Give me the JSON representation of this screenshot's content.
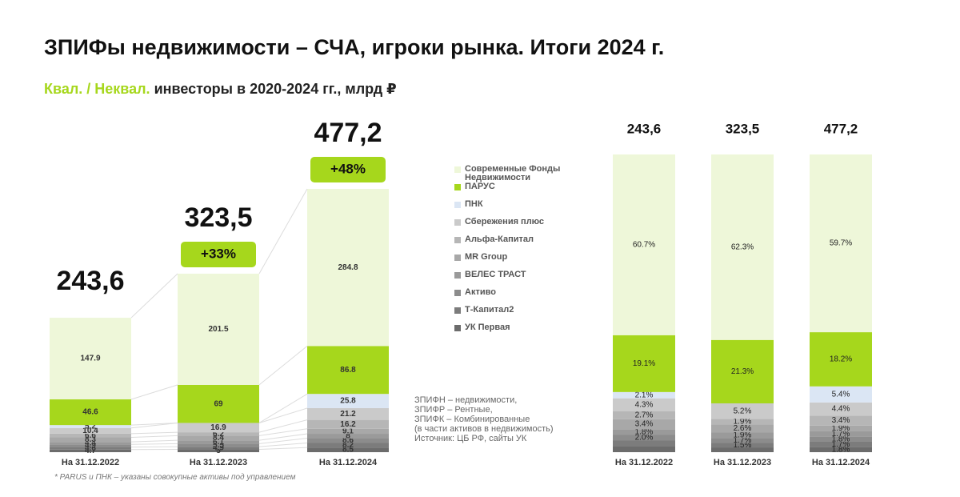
{
  "header": {
    "title": "ЗПИФы недвижимости – СЧА, игроки рынка. Итоги 2024 г.",
    "subtitle_highlight": "Квал. / Неквал.",
    "subtitle": " инвесторы в 2020-2024 гг., млрд ₽"
  },
  "notes": [
    "ЗПИФН – недвижимости,",
    "ЗПИФР – Рентные,",
    "ЗПИФК – Комбинированные",
    "(в части активов в недвижимость)",
    "Источник: ЦБ РФ, сайты УК"
  ],
  "footnote": "* PARUS и ПНК – указаны совокупные активы под управлением",
  "chart_data": [
    {
      "type": "stacked_bar",
      "categories": [
        "На 31.12.2022",
        "На 31.12.2023",
        "На 31.12.2024"
      ],
      "totals": [
        243.6,
        323.5,
        477.2
      ],
      "total_labels": [
        "243,6",
        "323,5",
        "477,2"
      ],
      "growth": [
        null,
        33,
        48
      ],
      "growth_labels": [
        null,
        "+33%",
        "+48%"
      ],
      "series": [
        {
          "name": "Современные Фонды Недвижимости",
          "color": "#eef7d9",
          "values": [
            147.9,
            201.5,
            284.8
          ]
        },
        {
          "name": "ПАРУС",
          "color": "#a6d71c",
          "values": [
            46.6,
            69.0,
            86.8
          ]
        },
        {
          "name": "ПНК",
          "color": "#dbe6f4",
          "values": [
            5.2,
            null,
            25.8
          ]
        },
        {
          "name": "Сбережения плюс",
          "color": "#cacaca",
          "values": [
            10.4,
            16.9,
            21.2
          ]
        },
        {
          "name": "Альфа-Капитал",
          "color": "#b6b6b6",
          "values": [
            6.6,
            6.2,
            16.2
          ]
        },
        {
          "name": "MR Group",
          "color": "#a8a8a8",
          "values": [
            8.3,
            8.4,
            9.1
          ]
        },
        {
          "name": "ВЕЛЕС ТРАСТ",
          "color": "#9a9a9a",
          "values": [
            4.4,
            6.1,
            8.0
          ]
        },
        {
          "name": "Активо",
          "color": "#8c8c8c",
          "values": [
            4.9,
            5.5,
            8.6
          ]
        },
        {
          "name": "Т-Капитал2",
          "color": "#7c7c7c",
          "values": [
            4.6,
            4.9,
            8.2
          ]
        },
        {
          "name": "УК Первая",
          "color": "#6c6c6c",
          "values": [
            4.7,
            5.0,
            8.5
          ]
        }
      ]
    },
    {
      "type": "percent_bar",
      "categories": [
        "На 31.12.2022",
        "На 31.12.2023",
        "На 31.12.2024"
      ],
      "ylim": [
        0,
        100
      ],
      "series": [
        {
          "values": [
            60.7,
            62.3,
            59.7
          ],
          "value_labels": [
            "60.7%",
            "62.3%",
            "59.7%"
          ]
        },
        {
          "values": [
            19.1,
            21.3,
            18.2
          ],
          "value_labels": [
            "19.1%",
            "21.3%",
            "18.2%"
          ]
        },
        {
          "values": [
            2.1,
            null,
            5.4
          ],
          "value_labels": [
            "2.1%",
            null,
            "5.4%"
          ]
        },
        {
          "values": [
            4.3,
            5.2,
            4.4
          ],
          "value_labels": [
            "4.3%",
            "5.2%",
            "4.4%"
          ]
        },
        {
          "values": [
            2.7,
            1.9,
            3.4
          ],
          "value_labels": [
            "2.7%",
            "1.9%",
            "3.4%"
          ]
        },
        {
          "values": [
            3.4,
            2.6,
            1.9
          ],
          "value_labels": [
            "3.4%",
            "2.6%",
            "1.9%"
          ]
        },
        {
          "values": [
            1.8,
            1.9,
            1.7
          ],
          "value_labels": [
            "1.8%",
            "1.9%",
            "1.7%"
          ]
        },
        {
          "values": [
            2.0,
            1.7,
            1.8
          ],
          "value_labels": [
            "2.0%",
            "1.7%",
            "1.8%"
          ]
        },
        {
          "values": [
            1.9,
            1.5,
            1.7
          ],
          "value_labels": [
            null,
            "1.5%",
            "1.7%"
          ]
        },
        {
          "values": [
            2.0,
            1.6,
            1.8
          ],
          "value_labels": [
            null,
            null,
            "1.8%"
          ]
        }
      ]
    }
  ]
}
